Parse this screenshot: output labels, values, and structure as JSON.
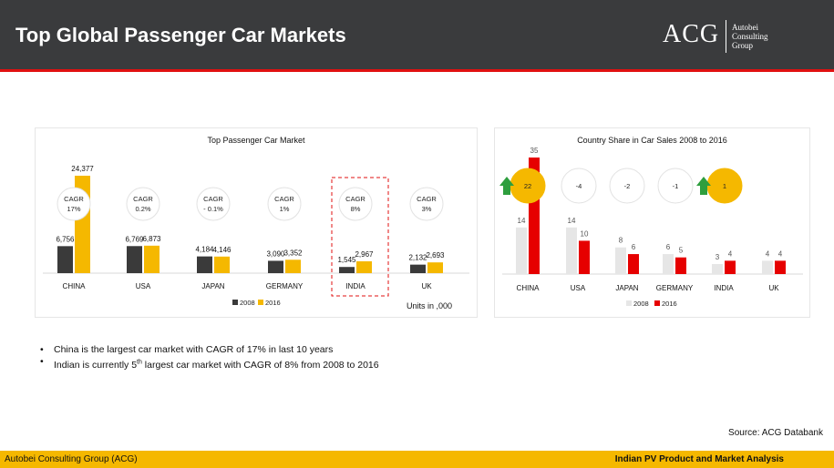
{
  "header": {
    "title": "Top Global Passenger Car Markets",
    "logo_mark": "ACG",
    "logo_lines": [
      "Autobei",
      "Consulting",
      "Group"
    ]
  },
  "colors": {
    "header_bg": "#3a3b3d",
    "accent_red": "#e01010",
    "footer_yellow": "#f5b800",
    "series_2008_market": "#3a3a3a",
    "series_2016_market": "#f5b800",
    "series_2008_share": "#e6e6e6",
    "series_2016_share": "#e60000",
    "cagr_positive_bubble": "#f5b800",
    "up_arrow": "#2e9e3e"
  },
  "chart_data": [
    {
      "type": "bar",
      "title": "Top Passenger Car Market",
      "categories": [
        "CHINA",
        "USA",
        "JAPAN",
        "GERMANY",
        "INDIA",
        "UK"
      ],
      "series": [
        {
          "name": "2008",
          "values": [
            6756,
            6769,
            4184,
            3090,
            1545,
            2132
          ],
          "labels": [
            "6,756",
            "6,769",
            "4,184",
            "3,090",
            "1,545",
            "2,132"
          ]
        },
        {
          "name": "2016",
          "values": [
            24377,
            6873,
            4146,
            3352,
            2967,
            2693
          ],
          "labels": [
            "24,377",
            "6,873",
            "4,146",
            "3,352",
            "2,967",
            "2,693"
          ]
        }
      ],
      "cagr_label": "CAGR",
      "cagr": [
        "17%",
        "0.2%",
        "- 0.1%",
        "1%",
        "8%",
        "3%"
      ],
      "highlight_category": "INDIA",
      "units_note": "Units in ,000",
      "legend": "bottom"
    },
    {
      "type": "bar",
      "title": "Country Share in Car Sales 2008 to 2016",
      "categories": [
        "CHINA",
        "USA",
        "JAPAN",
        "GERMANY",
        "INDIA",
        "UK"
      ],
      "series": [
        {
          "name": "2008",
          "values": [
            14,
            14,
            8,
            6,
            3,
            4
          ]
        },
        {
          "name": "2016",
          "values": [
            35,
            10,
            6,
            5,
            4,
            4
          ]
        }
      ],
      "share_change": [
        "22",
        "-4",
        "-2",
        "-1",
        "1",
        ""
      ],
      "share_change_highlight": [
        true,
        false,
        false,
        false,
        true,
        false
      ],
      "legend": "bottom"
    }
  ],
  "bullets": [
    "China is the largest car market with CAGR of 17% in last 10 years",
    "Indian is currently 5th largest car market with CAGR of 8% from 2008 to 2016"
  ],
  "source": "Source: ACG Databank",
  "footer": {
    "left": "Autobei Consulting Group (ACG)",
    "right": "Indian PV Product and Market Analysis"
  }
}
